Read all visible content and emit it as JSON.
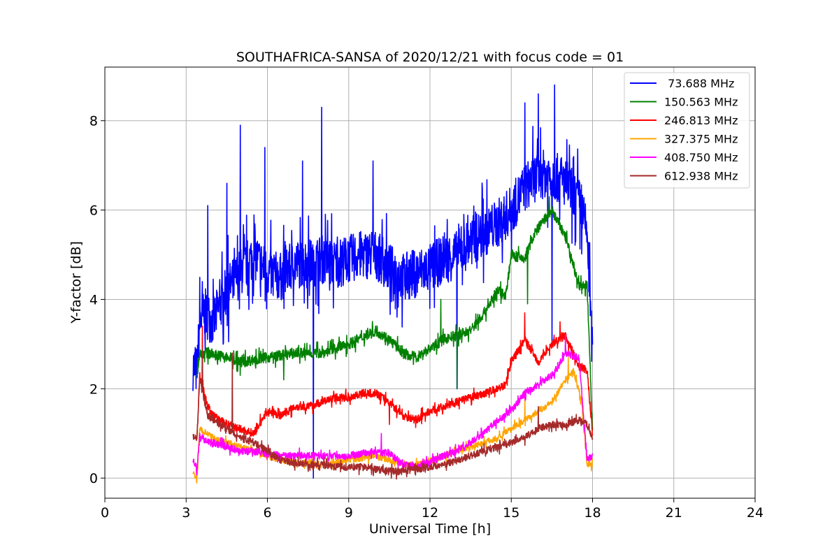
{
  "chart_data": {
    "type": "line",
    "title": "SOUTHAFRICA-SANSA of 2020/12/21 with focus code = 01",
    "xlabel": "Universal Time [h]",
    "ylabel": "Y-factor [dB]",
    "xlim": [
      0,
      24
    ],
    "ylim": [
      -0.45,
      9.2
    ],
    "xticks": [
      0,
      3,
      6,
      9,
      12,
      15,
      18,
      21,
      24
    ],
    "yticks": [
      0,
      2,
      4,
      6,
      8
    ],
    "grid": true,
    "legend_position": "top-right",
    "series": [
      {
        "name": " 73.688 MHz",
        "color": "#0000ff",
        "x": [
          3.25,
          3.4,
          3.5,
          3.7,
          4.0,
          4.5,
          5.0,
          5.5,
          6.0,
          6.5,
          7.0,
          7.5,
          8.0,
          8.5,
          9.0,
          9.5,
          10.0,
          10.5,
          11.0,
          11.5,
          12.0,
          12.5,
          13.0,
          13.5,
          14.0,
          14.5,
          15.0,
          15.5,
          16.0,
          16.5,
          17.0,
          17.5,
          17.8,
          18.0
        ],
        "y": [
          2.5,
          2.4,
          3.5,
          3.7,
          3.5,
          4.2,
          4.6,
          5.0,
          4.6,
          4.5,
          4.8,
          4.8,
          4.9,
          4.8,
          4.9,
          5.0,
          5.0,
          4.7,
          4.5,
          4.6,
          4.7,
          4.9,
          5.0,
          5.3,
          5.5,
          5.7,
          6.0,
          6.5,
          6.8,
          6.8,
          6.6,
          6.2,
          5.5,
          2.7
        ],
        "spikes": [
          [
            3.6,
            4.4
          ],
          [
            3.8,
            6.1
          ],
          [
            4.5,
            6.6
          ],
          [
            5.0,
            7.9
          ],
          [
            5.9,
            7.4
          ],
          [
            7.3,
            7.1
          ],
          [
            7.7,
            0.0
          ],
          [
            8.0,
            8.3
          ],
          [
            9.9,
            7.1
          ],
          [
            13.0,
            2.0
          ],
          [
            15.5,
            8.4
          ],
          [
            16.0,
            8.6
          ],
          [
            16.5,
            3.0
          ],
          [
            16.6,
            8.8
          ],
          [
            17.3,
            7.2
          ]
        ]
      },
      {
        "name": "150.563 MHz",
        "color": "#008000",
        "x": [
          3.4,
          3.5,
          3.8,
          4.5,
          5.0,
          6.0,
          7.0,
          8.0,
          9.0,
          10.0,
          10.5,
          11.0,
          11.5,
          12.0,
          12.5,
          13.0,
          13.5,
          14.0,
          14.5,
          14.8,
          15.0,
          15.5,
          15.8,
          16.0,
          16.5,
          17.0,
          17.5,
          17.8,
          18.0
        ],
        "y": [
          2.3,
          2.8,
          2.8,
          2.7,
          2.6,
          2.7,
          2.8,
          2.8,
          3.0,
          3.3,
          3.1,
          2.8,
          2.7,
          2.9,
          3.1,
          3.2,
          3.3,
          3.7,
          4.2,
          4.1,
          5.0,
          4.9,
          5.4,
          5.6,
          6.0,
          5.4,
          4.3,
          4.3,
          1.1
        ],
        "spikes": [
          [
            5.0,
            2.3
          ],
          [
            6.6,
            2.2
          ],
          [
            12.4,
            4.0
          ],
          [
            13.0,
            2.0
          ],
          [
            15.6,
            3.9
          ],
          [
            16.4,
            6.3
          ]
        ]
      },
      {
        "name": "246.813 MHz",
        "color": "#ff0000",
        "x": [
          3.4,
          3.5,
          3.8,
          4.0,
          4.5,
          5.0,
          5.5,
          6.0,
          6.5,
          7.0,
          7.5,
          8.0,
          8.5,
          9.0,
          9.5,
          10.0,
          10.5,
          11.0,
          11.5,
          12.0,
          12.5,
          13.0,
          13.5,
          14.0,
          14.5,
          14.8,
          15.0,
          15.5,
          16.0,
          16.5,
          17.0,
          17.5,
          17.8,
          18.0
        ],
        "y": [
          0.9,
          2.3,
          1.6,
          1.4,
          1.2,
          1.1,
          1.0,
          1.5,
          1.4,
          1.6,
          1.6,
          1.7,
          1.8,
          1.8,
          1.9,
          1.9,
          1.7,
          1.4,
          1.3,
          1.5,
          1.6,
          1.7,
          1.8,
          1.9,
          2.0,
          2.1,
          2.6,
          3.1,
          2.6,
          3.0,
          3.2,
          2.5,
          2.4,
          1.0
        ],
        "spikes": [
          [
            3.6,
            3.4
          ],
          [
            10.5,
            1.2
          ],
          [
            15.5,
            3.7
          ],
          [
            16.8,
            3.5
          ]
        ]
      },
      {
        "name": "327.375 MHz",
        "color": "#ffa500",
        "x": [
          3.25,
          3.4,
          3.5,
          4.0,
          4.5,
          5.0,
          5.5,
          6.0,
          6.5,
          7.0,
          7.5,
          8.0,
          8.5,
          9.0,
          9.5,
          10.0,
          10.5,
          11.0,
          11.5,
          12.0,
          12.5,
          13.0,
          13.5,
          14.0,
          14.5,
          15.0,
          15.5,
          16.0,
          16.5,
          17.0,
          17.3,
          17.6,
          17.8,
          18.0
        ],
        "y": [
          0.1,
          0.0,
          1.1,
          0.9,
          0.8,
          0.7,
          0.6,
          0.5,
          0.4,
          0.35,
          0.35,
          0.3,
          0.35,
          0.4,
          0.45,
          0.5,
          0.4,
          0.3,
          0.3,
          0.4,
          0.5,
          0.6,
          0.7,
          0.8,
          0.9,
          1.1,
          1.3,
          1.5,
          1.7,
          2.2,
          2.4,
          1.7,
          0.3,
          0.3
        ],
        "spikes": [
          [
            15.5,
            1.8
          ],
          [
            17.1,
            2.7
          ]
        ]
      },
      {
        "name": "408.750 MHz",
        "color": "#ff00ff",
        "x": [
          3.25,
          3.4,
          3.5,
          4.0,
          4.5,
          5.0,
          5.5,
          6.0,
          6.5,
          7.0,
          7.5,
          8.0,
          8.5,
          9.0,
          9.5,
          10.0,
          10.5,
          11.0,
          11.5,
          12.0,
          12.5,
          13.0,
          13.5,
          14.0,
          14.5,
          15.0,
          15.5,
          16.0,
          16.5,
          17.0,
          17.5,
          17.8,
          18.0
        ],
        "y": [
          0.4,
          0.2,
          0.9,
          0.8,
          0.7,
          0.6,
          0.6,
          0.55,
          0.5,
          0.5,
          0.5,
          0.5,
          0.5,
          0.5,
          0.55,
          0.6,
          0.55,
          0.3,
          0.25,
          0.35,
          0.5,
          0.6,
          0.8,
          1.0,
          1.3,
          1.5,
          1.9,
          2.1,
          2.3,
          2.8,
          2.7,
          0.4,
          0.5
        ],
        "spikes": [
          [
            10.2,
            1.0
          ],
          [
            17.0,
            3.2
          ]
        ]
      },
      {
        "name": "612.938 MHz",
        "color": "#a52a2a",
        "x": [
          3.25,
          3.4,
          3.5,
          3.8,
          4.0,
          4.5,
          5.0,
          5.5,
          6.0,
          6.5,
          7.0,
          7.5,
          8.0,
          8.5,
          9.0,
          9.5,
          10.0,
          10.5,
          11.0,
          11.5,
          12.0,
          12.5,
          13.0,
          13.5,
          14.0,
          14.5,
          15.0,
          15.5,
          16.0,
          16.5,
          17.0,
          17.5,
          17.8,
          18.0
        ],
        "y": [
          0.9,
          0.9,
          2.2,
          1.4,
          1.3,
          1.1,
          0.9,
          0.8,
          0.6,
          0.4,
          0.35,
          0.3,
          0.3,
          0.25,
          0.25,
          0.25,
          0.2,
          0.15,
          0.15,
          0.2,
          0.25,
          0.3,
          0.4,
          0.5,
          0.6,
          0.7,
          0.8,
          0.9,
          1.1,
          1.2,
          1.2,
          1.3,
          1.2,
          0.9
        ],
        "spikes": [
          [
            3.6,
            2.9
          ],
          [
            4.7,
            2.8
          ],
          [
            16.0,
            1.6
          ]
        ]
      }
    ]
  }
}
